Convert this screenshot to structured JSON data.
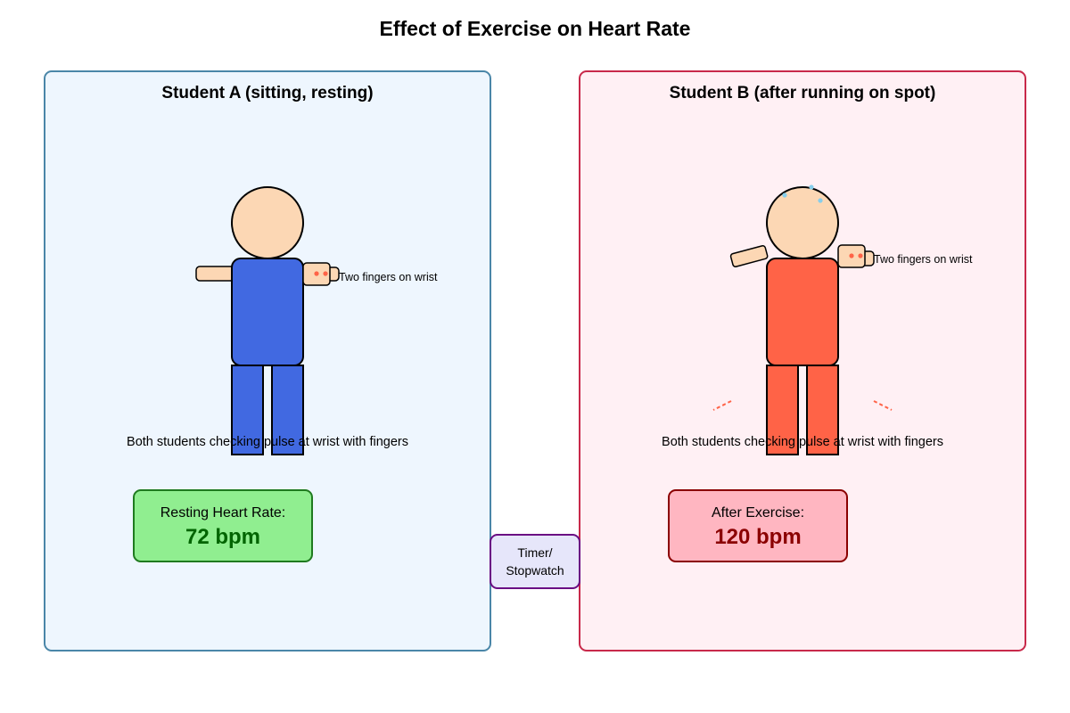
{
  "title": "Effect of Exercise on Heart Rate",
  "student_a": {
    "title": "Student A (sitting, resting)",
    "wrist_label": "Two fingers on wrist",
    "caption": "Both students checking pulse at wrist with fingers",
    "rate_label": "Resting Heart Rate:",
    "rate_value": "72 bpm",
    "colors": {
      "panel_fill": "#eef6fe",
      "panel_border": "#4a86a8",
      "clothing": "#4169e1",
      "rate_fill": "#90ee90",
      "rate_border": "#1f7a1f",
      "rate_text": "#006400"
    }
  },
  "student_b": {
    "title": "Student B (after running on spot)",
    "wrist_label": "Two fingers on wrist",
    "caption": "Both students checking pulse at wrist with fingers",
    "rate_label": "After Exercise:",
    "rate_value": "120 bpm",
    "colors": {
      "panel_fill": "#fff0f4",
      "panel_border": "#c8294a",
      "clothing": "#ff6347",
      "rate_fill": "#ffb6c1",
      "rate_border": "#8b0000",
      "rate_text": "#8b0000"
    }
  },
  "timer": {
    "line1": "Timer/",
    "line2": "Stopwatch",
    "colors": {
      "fill": "#e6e6fa",
      "border": "#6a0d83"
    }
  },
  "colors": {
    "skin": "#fcd7b4",
    "pulse_dot": "#ff6347",
    "sweat": "#87ceeb",
    "motion": "#ff6347"
  }
}
